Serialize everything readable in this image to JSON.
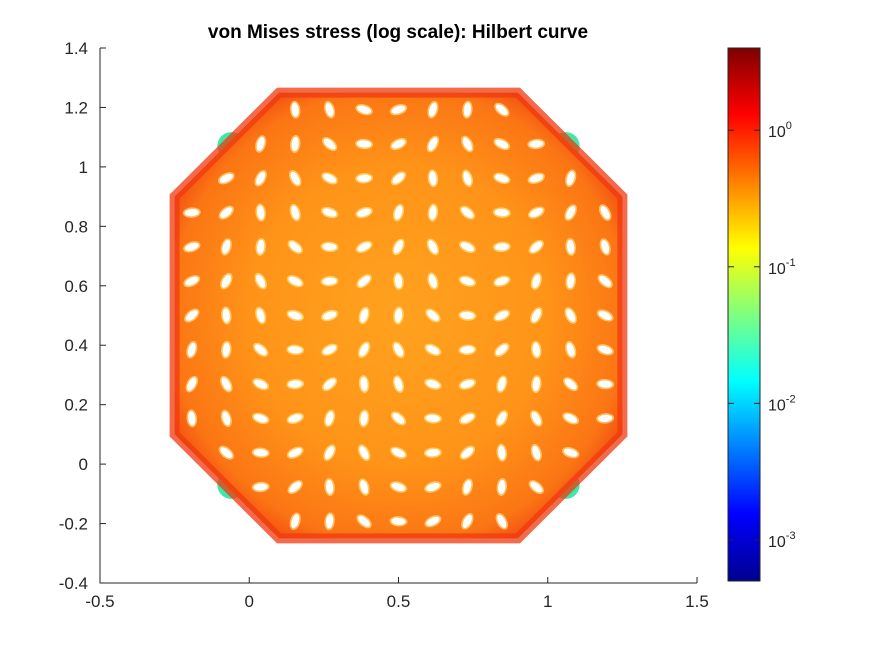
{
  "chart_data": {
    "type": "heatmap",
    "title": "von Mises stress (log scale): Hilbert curve",
    "xlabel": "",
    "ylabel": "",
    "xlim": [
      -0.5,
      1.5
    ],
    "ylim": [
      -0.4,
      1.4
    ],
    "xticks": [
      -0.5,
      0,
      0.5,
      1,
      1.5
    ],
    "xtick_labels": [
      "-0.5",
      "0",
      "0.5",
      "1",
      "1.5"
    ],
    "yticks": [
      -0.4,
      -0.2,
      0,
      0.2,
      0.4,
      0.6,
      0.8,
      1,
      1.2,
      1.4
    ],
    "ytick_labels": [
      "-0.4",
      "-0.2",
      "0",
      "0.2",
      "0.4",
      "0.6",
      "0.8",
      "1",
      "1.2",
      "1.4"
    ],
    "domain_outline": [
      [
        0.1,
        -0.25
      ],
      [
        0.9,
        -0.25
      ],
      [
        1.25,
        0.1
      ],
      [
        1.25,
        0.9
      ],
      [
        0.9,
        1.25
      ],
      [
        0.1,
        1.25
      ],
      [
        -0.25,
        0.9
      ],
      [
        -0.25,
        0.1
      ]
    ],
    "hole_grid": {
      "x_range": [
        -0.25,
        1.25
      ],
      "y_range": [
        -0.25,
        1.25
      ],
      "count": 13,
      "center": [
        0.5,
        0.5
      ]
    },
    "field_description": "Stress mostly ~0.3-1 (orange), edges and outer corners ~1-3 (red), small corner regions ~0.02 (cyan)",
    "colorbar": {
      "colormap": "jet",
      "scale": "log",
      "range": [
        0.0005,
        4
      ],
      "ticks": [
        0.001,
        0.01,
        0.1,
        1
      ],
      "tick_base": "10",
      "tick_exponents": [
        "-3",
        "-2",
        "-1",
        "0"
      ]
    },
    "colors": {
      "background": "#ffffff",
      "axis": "#262626",
      "base_fill": "#ff9a1c",
      "edge_fill": "#f03a10",
      "low_fill": "#40e8a8",
      "hole": "#ffffff"
    }
  }
}
